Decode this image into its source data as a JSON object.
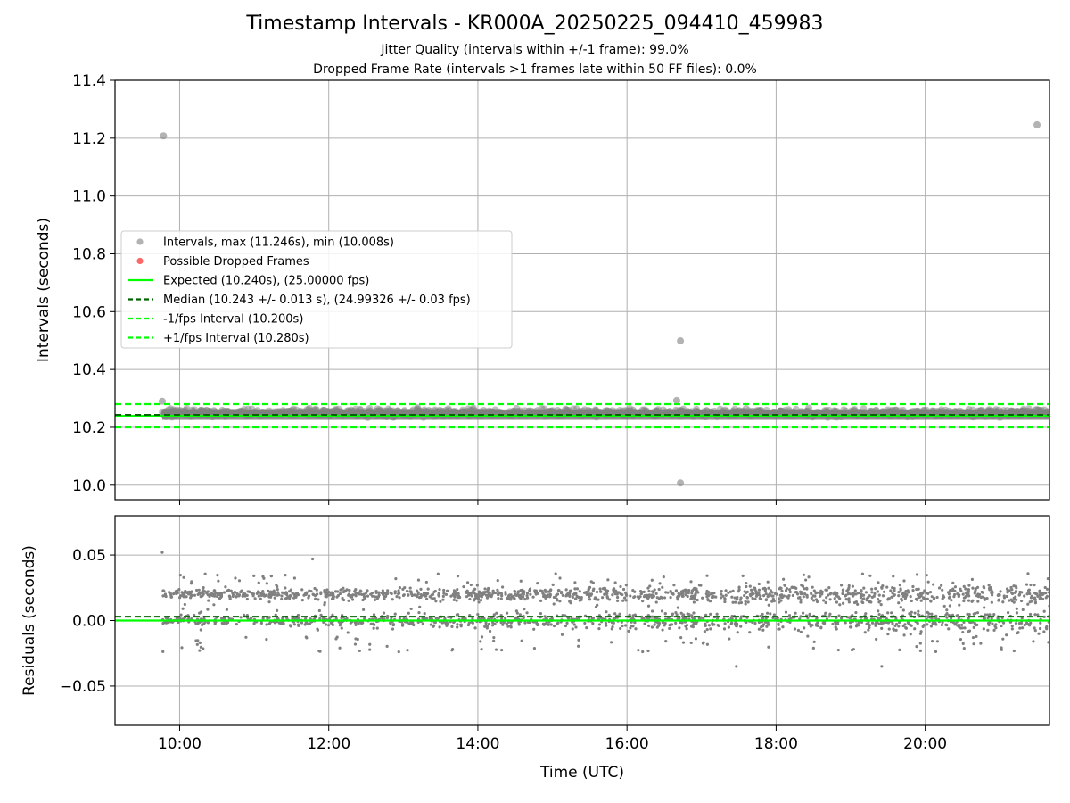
{
  "header": {
    "title": "Timestamp Intervals - KR000A_20250225_094410_459983",
    "subtitle_1": "Jitter Quality (intervals within +/-1 frame): 99.0%",
    "subtitle_2": "Dropped Frame Rate (intervals >1 frames late within 50 FF files): 0.0%"
  },
  "colors": {
    "points": "#808080",
    "dropped": "#ff0000",
    "expected": "#00ff00",
    "median": "#006400",
    "bounds": "#00ff00",
    "grid": "#b0b0b0"
  },
  "chart_data": [
    {
      "type": "scatter",
      "panel": "top",
      "ylabel": "Intervals (seconds)",
      "xlim": [
        "09:08",
        "21:40"
      ],
      "ylim": [
        9.95,
        11.4
      ],
      "yticks": [
        "10.0",
        "10.2",
        "10.4",
        "10.6",
        "10.8",
        "11.0",
        "11.2",
        "11.4"
      ],
      "grid": true,
      "legend": {
        "placement": "center-left",
        "entries": [
          "Intervals, max (11.246s), min (10.008s)",
          "Possible Dropped Frames",
          "Expected (10.240s), (25.00000 fps)",
          "Median (10.243 +/- 0.013 s), (24.99326 +/- 0.03 fps)",
          "-1/fps Interval (10.200s)",
          "+1/fps Interval (10.280s)"
        ]
      },
      "reference_lines": {
        "expected": 10.24,
        "median": 10.243,
        "minus_1_fps": 10.2,
        "plus_1_fps": 10.28
      },
      "series": [
        {
          "name": "Intervals, max (11.246s), min (10.008s)",
          "x_range": [
            "09:46",
            "21:40"
          ],
          "typical_range": [
            10.22,
            10.28
          ],
          "outliers": [
            {
              "x": "09:47",
              "y": 11.208
            },
            {
              "x": "21:30",
              "y": 11.246
            },
            {
              "x": "16:43",
              "y": 10.499
            },
            {
              "x": "16:43",
              "y": 10.008
            },
            {
              "x": "09:46",
              "y": 10.29
            },
            {
              "x": "16:40",
              "y": 10.293
            }
          ]
        },
        {
          "name": "Possible Dropped Frames",
          "points": []
        }
      ]
    },
    {
      "type": "scatter",
      "panel": "bottom",
      "xlabel": "Time (UTC)",
      "ylabel": "Residuals (seconds)",
      "xlim": [
        "09:08",
        "21:40"
      ],
      "ylim": [
        -0.08,
        0.08
      ],
      "xticks": [
        "10:00",
        "12:00",
        "14:00",
        "16:00",
        "18:00",
        "20:00"
      ],
      "yticks": [
        "−0.05",
        "0.00",
        "0.05"
      ],
      "grid": true,
      "reference_lines": {
        "expected": 0.0,
        "median": 0.003
      },
      "series": [
        {
          "name": "Residuals",
          "x_range": [
            "09:46",
            "21:40"
          ],
          "bands": [
            0.0,
            0.02
          ],
          "spread": [
            -0.035,
            0.052
          ],
          "notable_points": [
            {
              "x": "09:46",
              "y": 0.052
            },
            {
              "x": "19:25",
              "y": -0.035
            },
            {
              "x": "17:28",
              "y": -0.035
            },
            {
              "x": "11:47",
              "y": 0.047
            }
          ]
        }
      ]
    }
  ]
}
